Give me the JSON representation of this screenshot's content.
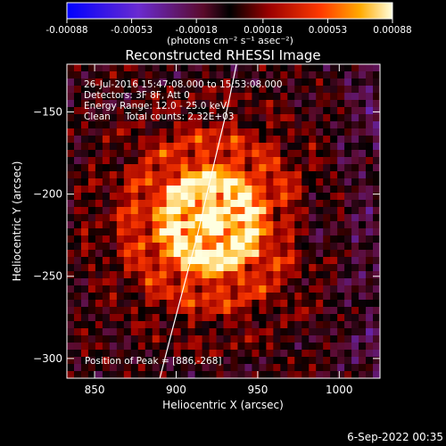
{
  "colorbar": {
    "tick_labels": [
      "-0.00088",
      "-0.00053",
      "-0.00018",
      "0.00018",
      "0.00053",
      "0.00088"
    ],
    "tick_values": [
      -0.00088,
      -0.00053,
      -0.00018,
      0.00018,
      0.00053,
      0.00088
    ],
    "range": [
      -0.00088,
      0.00088
    ],
    "units": "(photons cm⁻² s⁻¹ asec⁻²)"
  },
  "chart_data": {
    "type": "heatmap",
    "title": "Reconstructed RHESSI Image",
    "xlabel": "Heliocentric X (arcsec)",
    "ylabel": "Heliocentric Y (arcsec)",
    "xlim": [
      833,
      1025
    ],
    "ylim": [
      -312,
      -121
    ],
    "x_ticks": [
      850,
      900,
      950,
      1000
    ],
    "x_tick_labels": [
      "850",
      "900",
      "950",
      "1000"
    ],
    "y_ticks": [
      -300,
      -250,
      -200,
      -150
    ],
    "y_tick_labels": [
      "−300",
      "−250",
      "−200",
      "−150"
    ],
    "peak": {
      "x": 886,
      "y": -268
    },
    "limb_curve": {
      "x": [
        890,
        897,
        905,
        913,
        920,
        926,
        932,
        937
      ],
      "y": [
        -312,
        -285,
        -255,
        -225,
        -195,
        -170,
        -145,
        -121
      ]
    },
    "info_lines": [
      "26-Jul-2016 15:47:08.000 to 15:53:08.000",
      "Detectors: 3F 8F, Att 0",
      "Energy Range: 12.0 - 25.0 keV",
      "Clean     Total counts: 2.32E+03"
    ],
    "peak_label": "Position of Peak = [886,-268]"
  },
  "timestamp": "6-Sep-2022 00:35"
}
